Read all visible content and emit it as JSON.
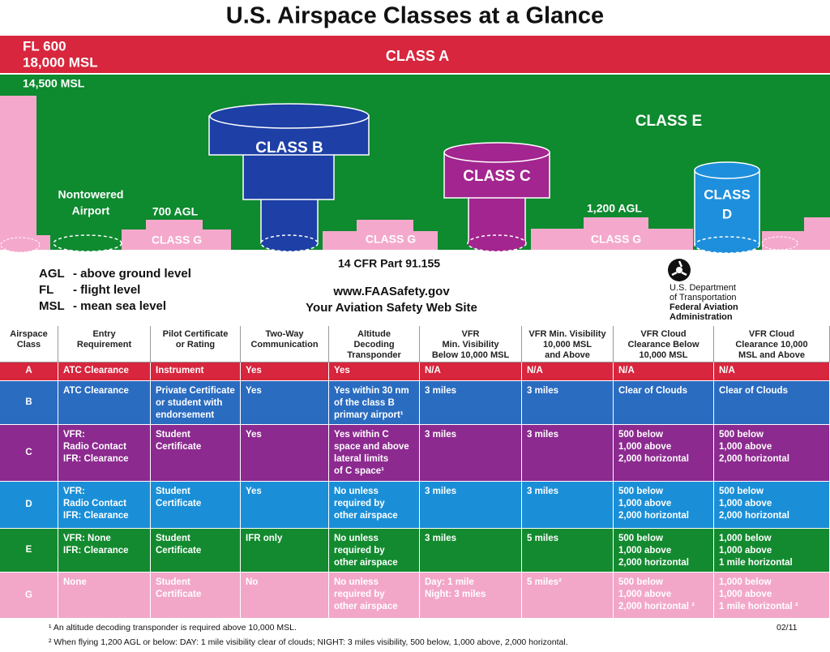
{
  "title": "U.S. Airspace Classes at a Glance",
  "diagram": {
    "fl600": "FL 600",
    "msl18000": "18,000 MSL",
    "class_a": "CLASS A",
    "msl14500": "14,500 MSL",
    "class_e": "CLASS E",
    "class_b": "CLASS B",
    "class_c": "CLASS C",
    "class_d": [
      "CLASS",
      "D"
    ],
    "nontowered": [
      "Nontowered",
      "Airport"
    ],
    "agl700": "700 AGL",
    "agl1200": "1,200 AGL",
    "class_g": [
      "CLASS G",
      "CLASS G",
      "CLASS G"
    ]
  },
  "legend": [
    {
      "abbr": "AGL",
      "text": "- above ground level"
    },
    {
      "abbr": "FL",
      "text": "- flight level"
    },
    {
      "abbr": "MSL",
      "text": "- mean sea level"
    }
  ],
  "cfr": "14 CFR Part 91.155",
  "website": "www.FAASafety.gov",
  "tagline": "Your Aviation Safety Web Site",
  "dot": [
    "U.S. Department",
    "of Transportation",
    "Federal Aviation",
    "Administration"
  ],
  "table": {
    "header": [
      [
        "Airspace",
        "Class"
      ],
      [
        "Entry",
        "Requirement"
      ],
      [
        "Pilot Certificate",
        "or Rating"
      ],
      [
        "Two-Way",
        "Communication"
      ],
      [
        "Altitude",
        "Decoding",
        "Transponder"
      ],
      [
        "VFR",
        "Min. Visibility",
        "Below 10,000 MSL"
      ],
      [
        "VFR Min. Visibility",
        "10,000 MSL",
        "and Above"
      ],
      [
        "VFR Cloud",
        "Clearance Below",
        "10,000 MSL"
      ],
      [
        "VFR Cloud",
        "Clearance 10,000",
        "MSL and Above"
      ]
    ],
    "rows": [
      {
        "color": "#d7263d",
        "cells": [
          [
            "A"
          ],
          [
            "ATC Clearance"
          ],
          [
            "Instrument"
          ],
          [
            "Yes"
          ],
          [
            "Yes"
          ],
          [
            "N/A"
          ],
          [
            "N/A"
          ],
          [
            "N/A"
          ],
          [
            "N/A"
          ]
        ]
      },
      {
        "color": "#2a6cc0",
        "cells": [
          [
            "B"
          ],
          [
            "ATC Clearance"
          ],
          [
            "Private Certificate",
            "or student with",
            "endorsement"
          ],
          [
            "Yes"
          ],
          [
            "Yes within 30 nm",
            "of the class B",
            "primary airport¹"
          ],
          [
            "3 miles"
          ],
          [
            "3 miles"
          ],
          [
            "Clear of Clouds"
          ],
          [
            "Clear of Clouds"
          ]
        ]
      },
      {
        "color": "#8c2a8f",
        "cells": [
          [
            "C"
          ],
          [
            "VFR:",
            "Radio Contact",
            "IFR: Clearance"
          ],
          [
            "Student",
            "Certificate"
          ],
          [
            "Yes"
          ],
          [
            "Yes within C",
            "space and above",
            "lateral limits",
            "of C space¹"
          ],
          [
            "3 miles"
          ],
          [
            "3 miles"
          ],
          [
            "500 below",
            "1,000 above",
            "2,000 horizontal"
          ],
          [
            "500 below",
            "1,000 above",
            "2,000 horizontal"
          ]
        ]
      },
      {
        "color": "#1a8fd8",
        "cells": [
          [
            "D"
          ],
          [
            "VFR:",
            "Radio Contact",
            "IFR: Clearance"
          ],
          [
            "Student",
            "Certificate"
          ],
          [
            "Yes"
          ],
          [
            "No unless",
            "required by",
            "other airspace"
          ],
          [
            "3 miles"
          ],
          [
            "3 miles"
          ],
          [
            "500 below",
            "1,000 above",
            "2,000 horizontal"
          ],
          [
            "500 below",
            "1,000 above",
            "2,000 horizontal"
          ]
        ]
      },
      {
        "color": "#138a2f",
        "cells": [
          [
            "E"
          ],
          [
            "VFR: None",
            "IFR: Clearance"
          ],
          [
            "Student",
            "Certificate"
          ],
          [
            "IFR only"
          ],
          [
            "No unless",
            "required by",
            "other airspace"
          ],
          [
            "3 miles"
          ],
          [
            "5 miles"
          ],
          [
            "500 below",
            "1,000 above",
            "2,000 horizontal"
          ],
          [
            "1,000 below",
            "1,000 above",
            "1 mile horizontal"
          ]
        ]
      },
      {
        "color": "#f2a7c9",
        "cells": [
          [
            "G"
          ],
          [
            "None"
          ],
          [
            "Student",
            "Certificate"
          ],
          [
            "No"
          ],
          [
            "No unless",
            "required by",
            "other airspace"
          ],
          [
            "Day: 1 mile",
            "Night: 3 miles"
          ],
          [
            "5 miles²"
          ],
          [
            "500 below",
            "1,000 above",
            "2,000 horizontal ²"
          ],
          [
            "1,000 below",
            "1,000 above",
            "1 mile horizontal ²"
          ]
        ]
      }
    ]
  },
  "footnotes": [
    "¹ An altitude decoding transponder is required above 10,000 MSL.",
    "² When flying 1,200 AGL or below: DAY: 1 mile visibility clear of clouds; NIGHT: 3 miles visibility, 500 below, 1,000 above, 2,000 horizontal."
  ],
  "date": "02/11"
}
